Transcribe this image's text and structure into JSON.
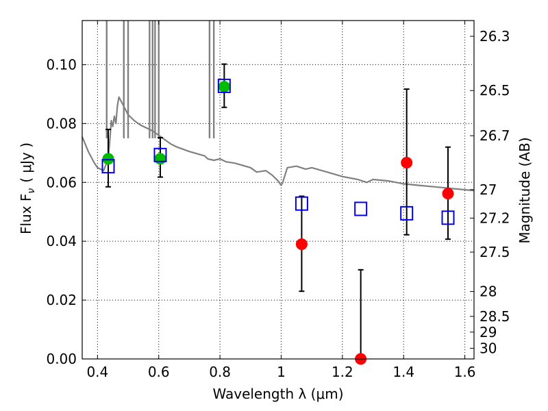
{
  "chart_data": {
    "type": "scatter",
    "xlabel": "Wavelength  λ (μm)",
    "ylabel": "Flux  F",
    "ylabel_sub": "ν",
    "ylabel_unit": "( μJy )",
    "y2label": "Magnitude (AB)",
    "xlim": [
      0.35,
      1.63
    ],
    "ylim": [
      0.0,
      0.115
    ],
    "grid": true,
    "x_ticks": [
      {
        "value": 0.4,
        "label": "0.4"
      },
      {
        "value": 0.6,
        "label": "0.6"
      },
      {
        "value": 0.8,
        "label": "0.8"
      },
      {
        "value": 1.0,
        "label": "1"
      },
      {
        "value": 1.2,
        "label": "1.2"
      },
      {
        "value": 1.4,
        "label": "1.4"
      },
      {
        "value": 1.6,
        "label": "1.6"
      }
    ],
    "y_ticks": [
      {
        "value": 0.0,
        "label": "0.00"
      },
      {
        "value": 0.02,
        "label": "0.02"
      },
      {
        "value": 0.04,
        "label": "0.04"
      },
      {
        "value": 0.06,
        "label": "0.06"
      },
      {
        "value": 0.08,
        "label": "0.08"
      },
      {
        "value": 0.1,
        "label": "0.10"
      }
    ],
    "y2_ticks": [
      {
        "value": 26.3,
        "label": "26.3"
      },
      {
        "value": 26.5,
        "label": "26.5"
      },
      {
        "value": 26.7,
        "label": "26.7"
      },
      {
        "value": 27.0,
        "label": "27"
      },
      {
        "value": 27.2,
        "label": "27.2"
      },
      {
        "value": 27.5,
        "label": "27.5"
      },
      {
        "value": 28.0,
        "label": "28"
      },
      {
        "value": 28.5,
        "label": "28.5"
      },
      {
        "value": 29.0,
        "label": "29"
      },
      {
        "value": 30.0,
        "label": "30"
      }
    ],
    "series": [
      {
        "marker": "circle",
        "color": "#00bb00",
        "points": [
          {
            "x": 0.435,
            "y": 0.068,
            "yerr_low": 0.0585,
            "yerr_high": 0.078
          },
          {
            "x": 0.605,
            "y": 0.068,
            "yerr_low": 0.0618,
            "yerr_high": 0.0752
          },
          {
            "x": 0.814,
            "y": 0.0925,
            "yerr_low": 0.0855,
            "yerr_high": 0.1002
          }
        ]
      },
      {
        "marker": "circle",
        "color": "#ff0000",
        "points": [
          {
            "x": 1.067,
            "y": 0.039,
            "yerr_low": 0.023,
            "yerr_high": 0.0553
          },
          {
            "x": 1.26,
            "y": 0.0,
            "yerr_low": 0.0,
            "yerr_high": 0.0303
          },
          {
            "x": 1.41,
            "y": 0.0667,
            "yerr_low": 0.0422,
            "yerr_high": 0.0917
          },
          {
            "x": 1.545,
            "y": 0.0562,
            "yerr_low": 0.0407,
            "yerr_high": 0.072
          }
        ]
      },
      {
        "marker": "square-open",
        "color": "#0000ee",
        "points": [
          {
            "x": 0.435,
            "y": 0.0655
          },
          {
            "x": 0.605,
            "y": 0.0693
          },
          {
            "x": 0.814,
            "y": 0.0928
          },
          {
            "x": 1.067,
            "y": 0.0528
          },
          {
            "x": 1.26,
            "y": 0.051
          },
          {
            "x": 1.41,
            "y": 0.0495
          },
          {
            "x": 1.545,
            "y": 0.048
          }
        ]
      },
      {
        "marker": "line",
        "color": "#808080",
        "points": [
          [
            0.35,
            0.0755
          ],
          [
            0.37,
            0.0705
          ],
          [
            0.39,
            0.0665
          ],
          [
            0.4,
            0.065
          ],
          [
            0.42,
            0.064
          ],
          [
            0.435,
            0.068
          ],
          [
            0.44,
            0.074
          ],
          [
            0.445,
            0.081
          ],
          [
            0.45,
            0.079
          ],
          [
            0.455,
            0.0825
          ],
          [
            0.46,
            0.08
          ],
          [
            0.465,
            0.086
          ],
          [
            0.47,
            0.089
          ],
          [
            0.48,
            0.087
          ],
          [
            0.49,
            0.085
          ],
          [
            0.5,
            0.083
          ],
          [
            0.52,
            0.081
          ],
          [
            0.54,
            0.0795
          ],
          [
            0.56,
            0.0785
          ],
          [
            0.58,
            0.0775
          ],
          [
            0.6,
            0.076
          ],
          [
            0.62,
            0.0745
          ],
          [
            0.64,
            0.073
          ],
          [
            0.66,
            0.072
          ],
          [
            0.7,
            0.0705
          ],
          [
            0.75,
            0.069
          ],
          [
            0.76,
            0.068
          ],
          [
            0.78,
            0.0675
          ],
          [
            0.8,
            0.068
          ],
          [
            0.82,
            0.067
          ],
          [
            0.85,
            0.0665
          ],
          [
            0.9,
            0.065
          ],
          [
            0.92,
            0.0635
          ],
          [
            0.95,
            0.064
          ],
          [
            0.97,
            0.0625
          ],
          [
            0.99,
            0.0605
          ],
          [
            1.0,
            0.059
          ],
          [
            1.005,
            0.06
          ],
          [
            1.02,
            0.065
          ],
          [
            1.05,
            0.0655
          ],
          [
            1.08,
            0.0645
          ],
          [
            1.1,
            0.065
          ],
          [
            1.15,
            0.0635
          ],
          [
            1.2,
            0.062
          ],
          [
            1.25,
            0.061
          ],
          [
            1.28,
            0.06
          ],
          [
            1.3,
            0.061
          ],
          [
            1.35,
            0.0605
          ],
          [
            1.4,
            0.0595
          ],
          [
            1.45,
            0.059
          ],
          [
            1.5,
            0.0585
          ],
          [
            1.55,
            0.058
          ],
          [
            1.6,
            0.0575
          ],
          [
            1.63,
            0.0572
          ]
        ],
        "spikes": [
          {
            "x": 0.43,
            "y": 0.115
          },
          {
            "x": 0.486,
            "y": 0.115
          },
          {
            "x": 0.5,
            "y": 0.115
          },
          {
            "x": 0.57,
            "y": 0.115
          },
          {
            "x": 0.58,
            "y": 0.115
          },
          {
            "x": 0.588,
            "y": 0.115
          },
          {
            "x": 0.6,
            "y": 0.115
          },
          {
            "x": 0.766,
            "y": 0.115
          },
          {
            "x": 0.78,
            "y": 0.115
          }
        ]
      }
    ]
  }
}
